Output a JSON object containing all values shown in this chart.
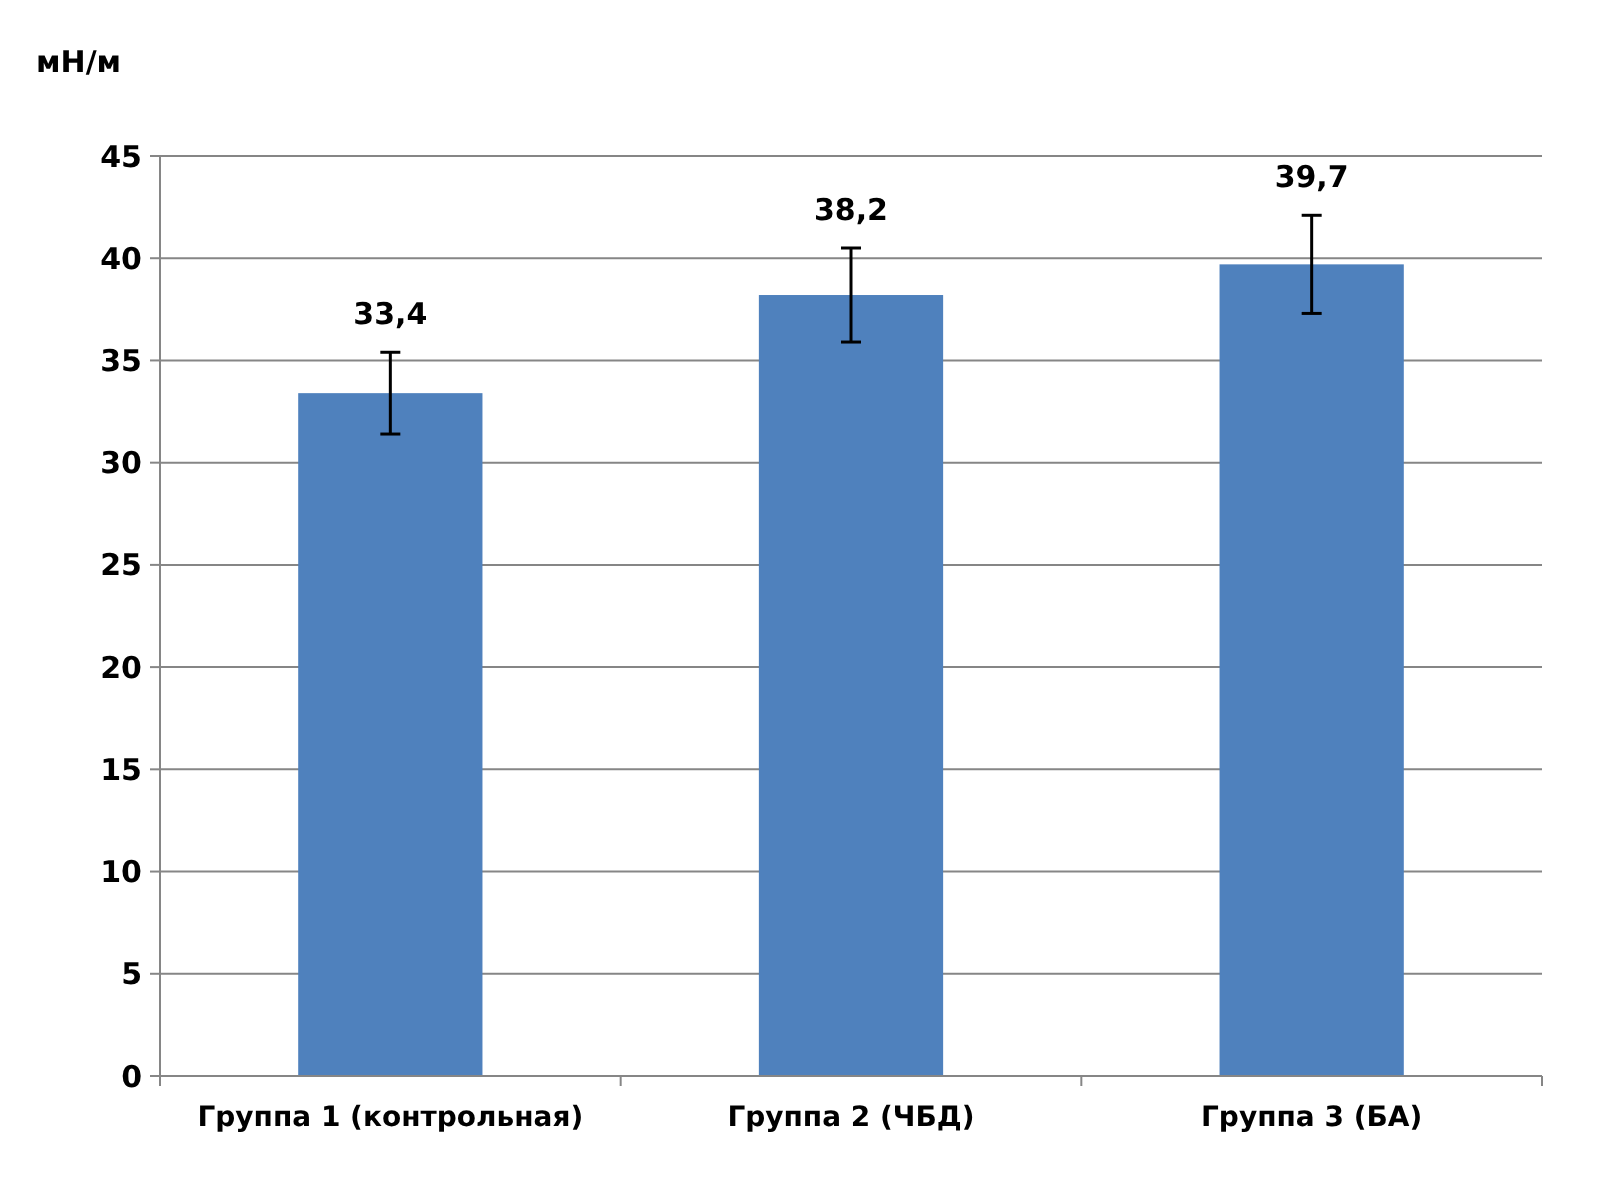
{
  "chart_data": {
    "type": "bar",
    "ylabel": "мН/м",
    "categories": [
      "Группа 1 (контрольная)",
      "Группа 2 (ЧБД)",
      "Группа 3 (БА)"
    ],
    "values": [
      33.4,
      38.2,
      39.7
    ],
    "value_labels": [
      "33,4",
      "38,2",
      "39,7"
    ],
    "errors": [
      2,
      2.3,
      2.4
    ],
    "color": "#4f81bd",
    "ylim": [
      0,
      45
    ],
    "yticks": [
      0,
      5,
      10,
      15,
      20,
      25,
      30,
      35,
      40,
      45
    ],
    "grid": "y"
  }
}
